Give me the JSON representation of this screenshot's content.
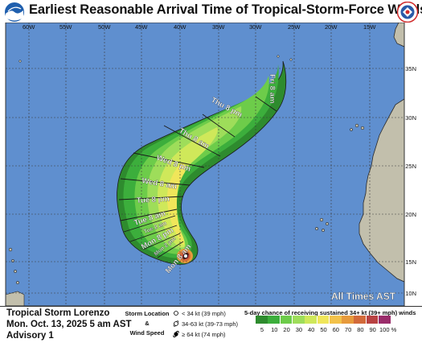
{
  "title": "Earliest Reasonable Arrival Time of Tropical-Storm-Force Winds",
  "longitude_labels": [
    "60W",
    "55W",
    "50W",
    "45W",
    "40W",
    "35W",
    "30W",
    "25W",
    "20W",
    "15W"
  ],
  "latitude_labels": [
    "35N",
    "30N",
    "25N",
    "20N",
    "15N",
    "10N"
  ],
  "arrival_labels": [
    {
      "text": "Fri 8 am"
    },
    {
      "text": "Thu 8 pm"
    },
    {
      "text": "Thu 8 am"
    },
    {
      "text": "Wed 8 pm"
    },
    {
      "text": "Wed 8 am"
    },
    {
      "text": "Tue 8 pm"
    },
    {
      "text": "Tue 8 am"
    },
    {
      "text": "Tue 2 am"
    },
    {
      "text": "Mon 8 pm"
    },
    {
      "text": "Mon 2 pm"
    },
    {
      "text": "Mon 8 am"
    }
  ],
  "time_zone_note": "All Times AST",
  "storm": {
    "name": "Tropical Storm Lorenzo",
    "date": "Mon. Oct. 13, 2025  5 am AST",
    "advisory": "Advisory 1"
  },
  "legend": {
    "heading1": "Storm Location",
    "heading2": "&",
    "heading3": "Wind Speed",
    "items": [
      "< 34 kt (39 mph)",
      "34-63 kt (39-73 mph)",
      "≥ 64 kt (74 mph)"
    ],
    "probability_title": "5-day chance of receiving sustained 34+ kt (39+ mph) winds",
    "probability_scale": [
      "5",
      "10",
      "20",
      "30",
      "40",
      "50",
      "60",
      "70",
      "80",
      "90",
      "100 %"
    ],
    "scale_colors": [
      "#2e8b2e",
      "#3cae3c",
      "#6dcc4a",
      "#9edd5a",
      "#cfe85a",
      "#f0e65a",
      "#f3c24a",
      "#e79a3c",
      "#d26a3a",
      "#b84242",
      "#9a2c6a"
    ]
  },
  "colors": {
    "ocean": "#5f8fcf",
    "land": "#c2bfac",
    "coast": "#2a2a2a",
    "grid": "#3a3a3a"
  },
  "icons": [
    "noaa-logo-icon",
    "nws-logo-icon"
  ]
}
